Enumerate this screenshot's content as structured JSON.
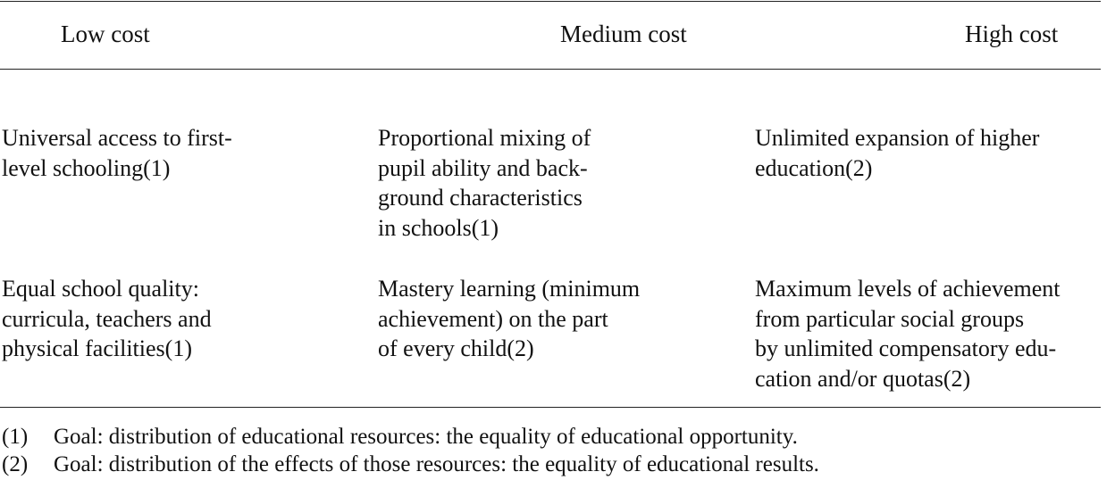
{
  "table": {
    "headers": [
      "Low cost",
      "Medium cost",
      "High cost"
    ],
    "rows": [
      [
        "Universal access to first-\nlevel schooling(1)",
        "Proportional mixing of\npupil ability and back-\nground characteristics\nin schools(1)",
        "Unlimited expansion of higher\neducation(2)"
      ],
      [
        "Equal school quality:\ncurricula, teachers and\nphysical facilities(1)",
        "Mastery learning (minimum\nachievement) on the part\nof every child(2)",
        "Maximum levels of achievement\nfrom particular social groups\nby unlimited compensatory edu-\ncation and/or quotas(2)"
      ]
    ]
  },
  "footnotes": [
    {
      "marker": "(1)",
      "text": "Goal:  distribution of educational resources: the equality of educational opportunity."
    },
    {
      "marker": "(2)",
      "text": "Goal:  distribution of the effects of those resources: the equality of educational results."
    }
  ]
}
